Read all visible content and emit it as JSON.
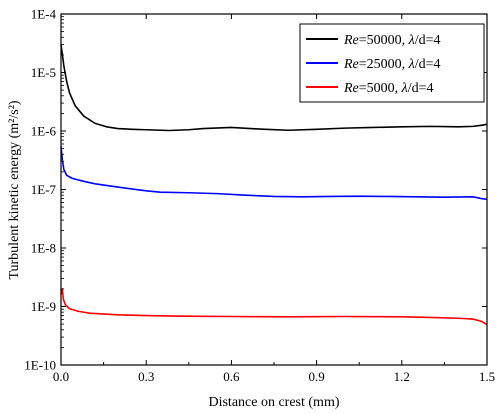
{
  "chart_data": {
    "type": "line",
    "xlabel": "Distance on crest (mm)",
    "ylabel": "Turbulent kinetic energy (m²/s²)",
    "xlim": [
      0,
      1.5
    ],
    "ylim": [
      1e-10,
      0.0001
    ],
    "yscale": "log",
    "x_ticks": [
      0.0,
      0.3,
      0.6,
      0.9,
      1.2,
      1.5
    ],
    "x_tick_labels": [
      "0.0",
      "0.3",
      "0.6",
      "0.9",
      "1.2",
      "1.5"
    ],
    "y_ticks": [
      1e-10,
      1e-09,
      1e-08,
      1e-07,
      1e-06,
      1e-05,
      0.0001
    ],
    "y_tick_labels": [
      "1E-10",
      "1E-9",
      "1E-8",
      "1E-7",
      "1E-6",
      "1E-5",
      "1E-4"
    ],
    "grid": false,
    "legend_position": "top-right",
    "series": [
      {
        "legend": {
          "var": "Re",
          "rest": "=50000, ",
          "lam": "λ",
          "tail": "/d=4"
        },
        "color": "#000000",
        "x": [
          0.0,
          0.005,
          0.01,
          0.02,
          0.03,
          0.05,
          0.08,
          0.12,
          0.16,
          0.2,
          0.25,
          0.3,
          0.38,
          0.45,
          0.5,
          0.6,
          0.7,
          0.8,
          0.9,
          1.0,
          1.1,
          1.2,
          1.3,
          1.4,
          1.45,
          1.48,
          1.5
        ],
        "y": [
          3e-05,
          2e-05,
          1.3e-05,
          7e-06,
          4.5e-06,
          2.7e-06,
          1.8e-06,
          1.35e-06,
          1.18e-06,
          1.1e-06,
          1.07e-06,
          1.05e-06,
          1.02e-06,
          1.05e-06,
          1.1e-06,
          1.15e-06,
          1.08e-06,
          1.03e-06,
          1.07e-06,
          1.12e-06,
          1.15e-06,
          1.18e-06,
          1.2e-06,
          1.18e-06,
          1.2e-06,
          1.25e-06,
          1.3e-06
        ]
      },
      {
        "legend": {
          "var": "Re",
          "rest": "=25000, ",
          "lam": "λ",
          "tail": "/d=4"
        },
        "color": "#0000ff",
        "x": [
          0.0,
          0.005,
          0.01,
          0.02,
          0.04,
          0.08,
          0.12,
          0.2,
          0.3,
          0.35,
          0.45,
          0.55,
          0.65,
          0.75,
          0.85,
          0.95,
          1.05,
          1.15,
          1.25,
          1.35,
          1.45,
          1.48,
          1.5
        ],
        "y": [
          5.5e-07,
          3.2e-07,
          2.2e-07,
          1.75e-07,
          1.55e-07,
          1.38e-07,
          1.25e-07,
          1.1e-07,
          9.5e-08,
          9e-08,
          8.8e-08,
          8.5e-08,
          8e-08,
          7.6e-08,
          7.5e-08,
          7.6e-08,
          7.7e-08,
          7.6e-08,
          7.5e-08,
          7.4e-08,
          7.5e-08,
          7e-08,
          6.8e-08
        ]
      },
      {
        "legend": {
          "var": "Re",
          "rest": "=5000, ",
          "lam": "λ",
          "tail": "/d=4"
        },
        "color": "#ff0000",
        "x": [
          0.0,
          0.005,
          0.008,
          0.015,
          0.03,
          0.06,
          0.1,
          0.2,
          0.3,
          0.4,
          0.5,
          0.6,
          0.7,
          0.8,
          0.9,
          1.0,
          1.1,
          1.2,
          1.3,
          1.4,
          1.45,
          1.48,
          1.5
        ],
        "y": [
          1.6e-09,
          2e-09,
          1.35e-09,
          1.08e-09,
          9.2e-10,
          8.3e-10,
          7.7e-10,
          7.2e-10,
          7e-10,
          6.85e-10,
          6.8e-10,
          6.75e-10,
          6.7e-10,
          6.65e-10,
          6.7e-10,
          6.75e-10,
          6.7e-10,
          6.65e-10,
          6.5e-10,
          6.3e-10,
          6.1e-10,
          5.6e-10,
          4.9e-10
        ]
      }
    ]
  }
}
